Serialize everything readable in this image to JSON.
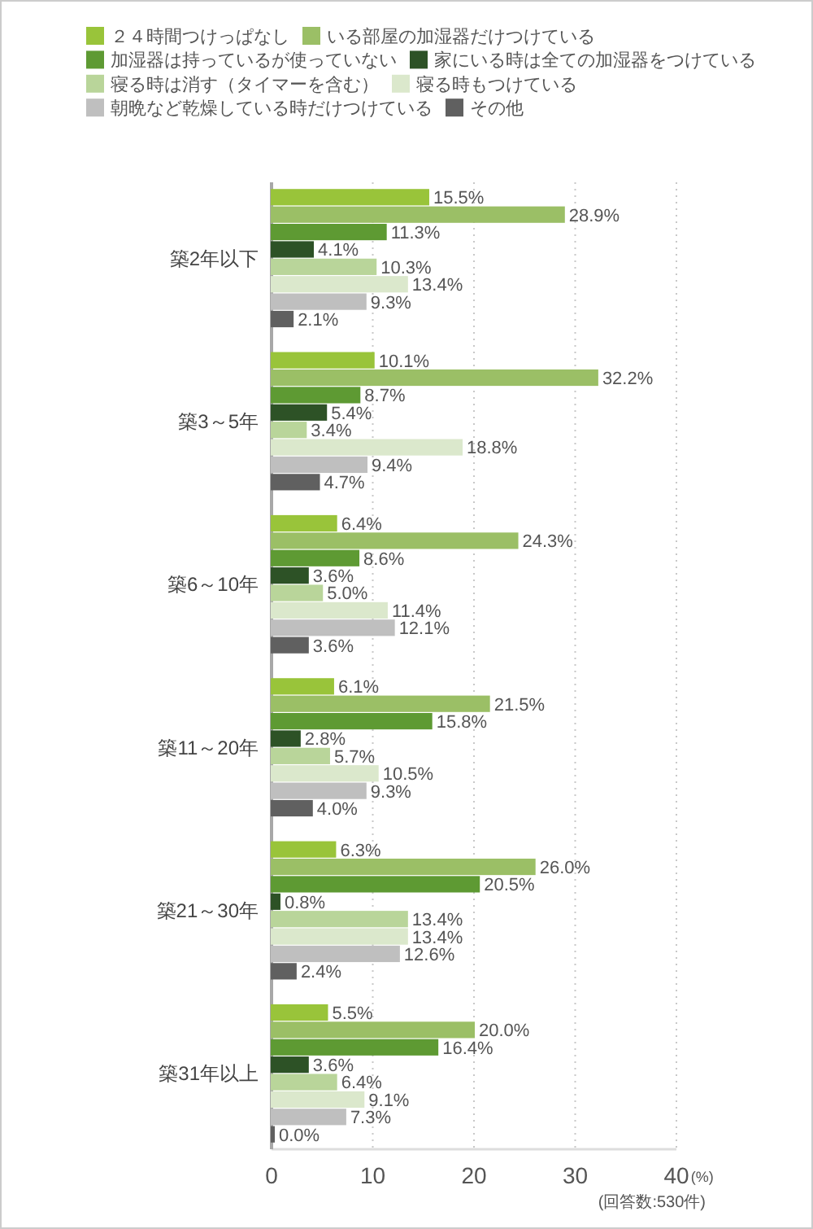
{
  "chart_data": {
    "type": "bar",
    "orientation": "horizontal",
    "categories": [
      "築2年以下",
      "築3～5年",
      "築6～10年",
      "築11～20年",
      "築21～30年",
      "築31年以上"
    ],
    "series": [
      {
        "name": "２４時間つけっぱなし",
        "color": "#99c43a",
        "values": [
          15.5,
          10.1,
          6.4,
          6.1,
          6.3,
          5.5
        ],
        "value_labels": [
          "15.5%",
          "10.1%",
          "6.4%",
          "6.1%",
          "6.3%",
          "5.5%"
        ]
      },
      {
        "name": "いる部屋の加湿器だけつけている",
        "color": "#9bbf66",
        "values": [
          28.9,
          32.2,
          24.3,
          21.5,
          26.0,
          20.0
        ],
        "value_labels": [
          "28.9%",
          "32.2%",
          "24.3%",
          "21.5%",
          "26.0%",
          "20.0%"
        ]
      },
      {
        "name": "加湿器は持っているが使っていない",
        "color": "#5e9a33",
        "values": [
          11.3,
          8.7,
          8.6,
          15.8,
          20.5,
          16.4
        ],
        "value_labels": [
          "11.3%",
          "8.7%",
          "8.6%",
          "15.8%",
          "20.5%",
          "16.4%"
        ]
      },
      {
        "name": "家にいる時は全ての加湿器をつけている",
        "color": "#2d5226",
        "values": [
          4.1,
          5.4,
          3.6,
          2.8,
          0.8,
          3.6
        ],
        "value_labels": [
          "4.1%",
          "5.4%",
          "3.6%",
          "2.8%",
          "0.8%",
          "3.6%"
        ]
      },
      {
        "name": "寝る時は消す（タイマーを含む）",
        "color": "#b9d59a",
        "values": [
          10.3,
          3.4,
          5.0,
          5.7,
          13.4,
          6.4
        ],
        "value_labels": [
          "10.3%",
          "3.4%",
          "5.0%",
          "5.7%",
          "13.4%",
          "6.4%"
        ]
      },
      {
        "name": "寝る時もつけている",
        "color": "#dbe8cc",
        "values": [
          13.4,
          18.8,
          11.4,
          10.5,
          13.4,
          9.1
        ],
        "value_labels": [
          "13.4%",
          "18.8%",
          "11.4%",
          "10.5%",
          "13.4%",
          "9.1%"
        ]
      },
      {
        "name": "朝晩など乾燥している時だけつけている",
        "color": "#bfbfbf",
        "values": [
          9.3,
          9.4,
          12.1,
          9.3,
          12.6,
          7.3
        ],
        "value_labels": [
          "9.3%",
          "9.4%",
          "12.1%",
          "9.3%",
          "12.6%",
          "7.3%"
        ]
      },
      {
        "name": "その他",
        "color": "#606060",
        "values": [
          2.1,
          4.7,
          3.6,
          4.0,
          2.4,
          0.0
        ],
        "value_labels": [
          "2.1%",
          "4.7%",
          "3.6%",
          "4.0%",
          "2.4%",
          "0.0%"
        ]
      }
    ],
    "xlim": [
      0,
      40
    ],
    "xticks": [
      0,
      10,
      20,
      30,
      40
    ],
    "xlabel": "(%)",
    "grid": "x",
    "legend": "top",
    "annotations": [
      "(回答数:530件)"
    ]
  }
}
